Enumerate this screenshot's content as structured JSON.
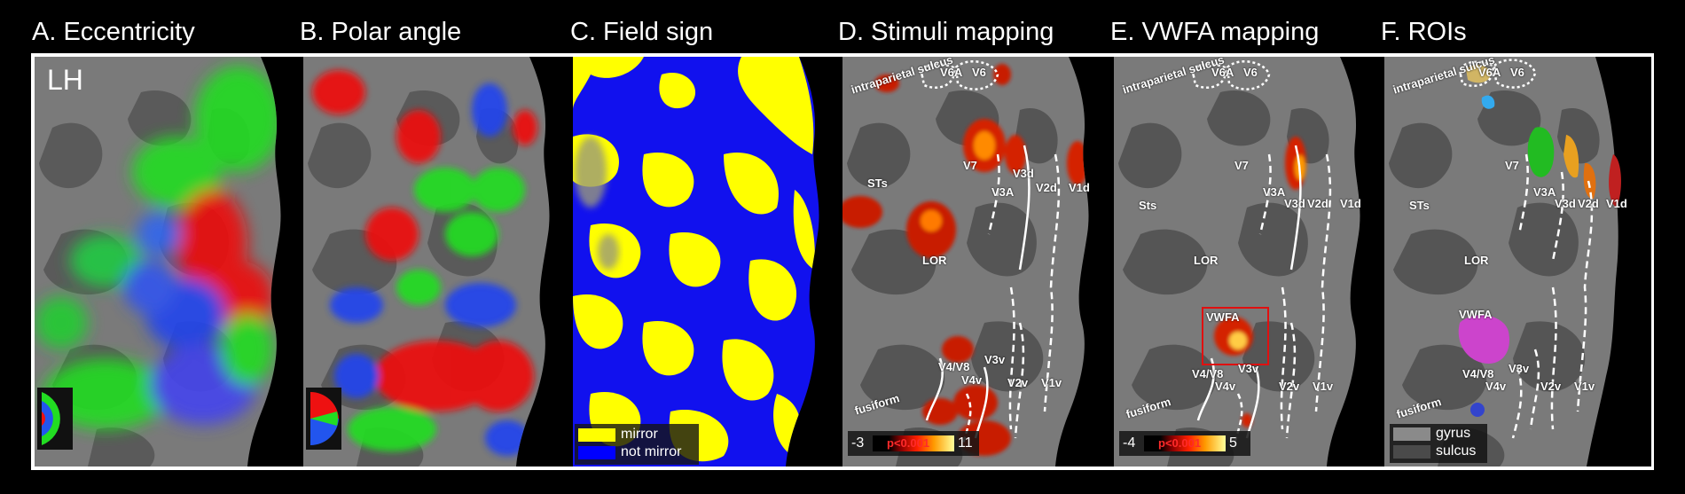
{
  "panels": [
    {
      "title": "A. Eccentricity"
    },
    {
      "title": "B. Polar angle"
    },
    {
      "title": "C. Field sign"
    },
    {
      "title": "D. Stimuli mapping"
    },
    {
      "title": "E. VWFA mapping"
    },
    {
      "title": "F. ROIs"
    }
  ],
  "hemisphere": "LH",
  "field_sign_legend": [
    "mirror",
    "not mirror"
  ],
  "colors": {
    "mirror": "#ffff00",
    "not_mirror": "#0000ff",
    "gyrus": "#8a8a8a",
    "sulcus": "#4a4a4a",
    "frame": "#ffffff",
    "roi_box": "#e01010"
  },
  "labels": {
    "v6a": "V6A",
    "v6": "V6",
    "intraparietal": "intraparietal sulcus",
    "v7": "V7",
    "v3a": "V3A",
    "v3d": "V3d",
    "v2d": "V2d",
    "v1d": "V1d",
    "sts_d": "STs",
    "sts_e": "Sts",
    "sts_f": "STs",
    "lor": "LOR",
    "vwfa": "VWFA",
    "v4v8": "V4/V8",
    "v4v": "V4v",
    "v3v": "V3v",
    "v2v": "V2v",
    "v1v": "V1v",
    "fusiform": "fusiform"
  },
  "colorbar_d": {
    "min": "-3",
    "p": "p<0.001",
    "max": "11"
  },
  "colorbar_e": {
    "min": "-4",
    "p": "p<0.001",
    "max": "5"
  },
  "roi_legend": [
    "gyrus",
    "sulcus"
  ]
}
